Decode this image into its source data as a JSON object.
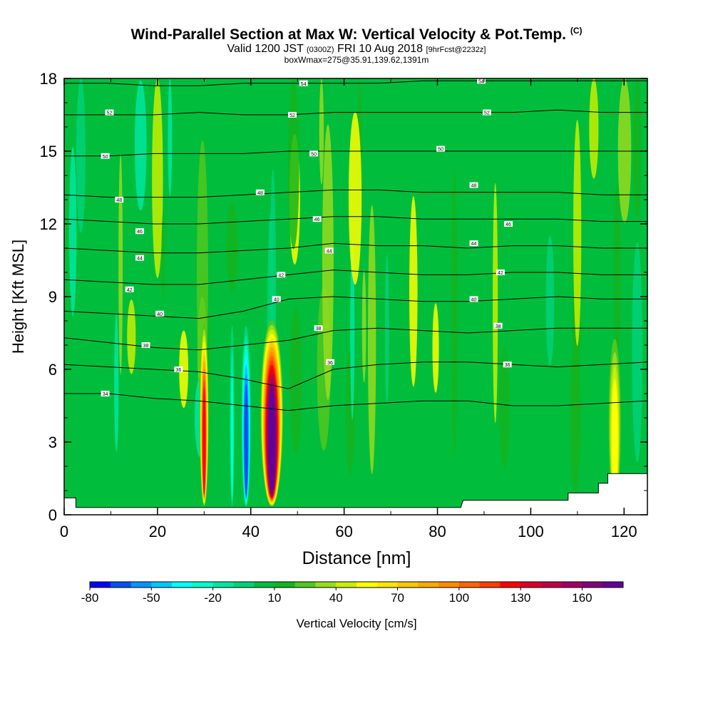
{
  "chart_data": {
    "type": "heatmap",
    "title": "Wind-Parallel Section at Max W: Vertical Velocity & Pot.Temp.",
    "title_suffix": "(C)",
    "subtitle_main_a": "Valid 1200 JST",
    "subtitle_zulu": "(0300Z)",
    "subtitle_main_b": "FRI 10 Aug 2018",
    "subtitle_fcst": "[9hrFcst@2232z]",
    "subtitle2": "boxWmax=275@35.91,139.62,1391m",
    "xlabel": "Distance [nm]",
    "ylabel": "Height [Kft MSL]",
    "xlim": [
      0,
      125
    ],
    "ylim": [
      0,
      18
    ],
    "x_ticks": [
      "0",
      "20",
      "40",
      "60",
      "80",
      "100",
      "120"
    ],
    "y_ticks": [
      "0",
      "3",
      "6",
      "9",
      "12",
      "15",
      "18"
    ],
    "colorbar": {
      "label": "Vertical Velocity [cm/s]",
      "min": -80,
      "max": 180,
      "step": 10,
      "tick_labels": [
        "-80",
        "-50",
        "-20",
        "10",
        "40",
        "70",
        "100",
        "130",
        "160"
      ],
      "colors": [
        "#0000ff",
        "#0050f0",
        "#0096ff",
        "#00c8ff",
        "#00ffff",
        "#00ffc8",
        "#00e6a0",
        "#00d278",
        "#00be3c",
        "#14b41e",
        "#50c81e",
        "#96dc1e",
        "#c8f000",
        "#ffff00",
        "#ffe600",
        "#ffc800",
        "#ffaa00",
        "#ff8c00",
        "#ff6400",
        "#ff3c00",
        "#ff0000",
        "#dc0028",
        "#be0046",
        "#a00064",
        "#820078",
        "#640096"
      ]
    },
    "cells": [
      {
        "x0": 29,
        "x1": 31,
        "peak": 120
      },
      {
        "x0": 35.5,
        "x1": 36.5,
        "peak": -30
      },
      {
        "x0": 38,
        "x1": 40,
        "peak": -75
      },
      {
        "x0": 42,
        "x1": 47,
        "peak": 175
      },
      {
        "x0": 116.5,
        "x1": 119.5,
        "peak": 55
      }
    ],
    "isentropes": [
      {
        "theta": 34,
        "y": [
          5.0,
          5.0,
          4.8,
          4.7,
          4.5,
          4.3,
          4.5,
          4.6,
          4.7,
          4.7,
          4.5,
          4.5,
          4.6,
          4.7
        ]
      },
      {
        "theta": 36,
        "y": [
          6.2,
          6.1,
          6.0,
          5.9,
          5.6,
          5.2,
          6.0,
          6.2,
          6.3,
          6.3,
          6.2,
          6.1,
          6.2,
          6.3
        ]
      },
      {
        "theta": 38,
        "y": [
          7.3,
          7.1,
          6.9,
          6.8,
          7.0,
          7.2,
          7.6,
          7.7,
          7.6,
          7.5,
          7.6,
          7.7,
          7.7,
          7.7
        ]
      },
      {
        "theta": 40,
        "y": [
          8.4,
          8.3,
          8.2,
          8.1,
          8.4,
          8.9,
          9.0,
          8.9,
          8.8,
          8.8,
          8.9,
          9.0,
          8.9,
          8.9
        ]
      },
      {
        "theta": 42,
        "y": [
          9.7,
          9.6,
          9.5,
          9.5,
          9.7,
          9.9,
          10.1,
          10.0,
          9.9,
          9.9,
          10.0,
          10.0,
          9.9,
          9.9
        ]
      },
      {
        "theta": 44,
        "y": [
          11.0,
          10.9,
          10.8,
          10.8,
          10.9,
          11.0,
          11.2,
          11.1,
          11.1,
          11.0,
          11.1,
          11.1,
          11.0,
          11.0
        ]
      },
      {
        "theta": 46,
        "y": [
          12.2,
          12.1,
          12.0,
          12.0,
          12.1,
          12.2,
          12.3,
          12.3,
          12.2,
          12.2,
          12.2,
          12.2,
          12.1,
          12.1
        ]
      },
      {
        "theta": 48,
        "y": [
          13.2,
          13.1,
          13.1,
          13.1,
          13.2,
          13.3,
          13.4,
          13.4,
          13.3,
          13.3,
          13.3,
          13.3,
          13.2,
          13.2
        ]
      },
      {
        "theta": 50,
        "y": [
          14.8,
          14.8,
          14.9,
          14.9,
          14.9,
          15.0,
          15.0,
          15.0,
          15.0,
          15.0,
          15.0,
          15.0,
          15.0,
          15.0
        ]
      },
      {
        "theta": 52,
        "y": [
          16.5,
          16.5,
          16.5,
          16.6,
          16.5,
          16.5,
          16.6,
          16.6,
          16.6,
          16.6,
          16.6,
          16.7,
          16.6,
          16.6
        ]
      },
      {
        "theta": 54,
        "y": [
          17.8,
          17.8,
          17.7,
          17.7,
          17.8,
          17.8,
          17.8,
          17.8,
          17.9,
          17.9,
          17.9,
          17.9,
          17.9,
          17.9
        ]
      }
    ],
    "theta_labels": [
      {
        "text": "34",
        "x": 8.8,
        "y": 5.0
      },
      {
        "text": "36",
        "x": 24.5,
        "y": 6.0
      },
      {
        "text": "36",
        "x": 57,
        "y": 6.3
      },
      {
        "text": "36",
        "x": 95,
        "y": 6.2
      },
      {
        "text": "38",
        "x": 17.5,
        "y": 7.0
      },
      {
        "text": "38",
        "x": 54.5,
        "y": 7.7
      },
      {
        "text": "38",
        "x": 93,
        "y": 7.8
      },
      {
        "text": "40",
        "x": 20.5,
        "y": 8.3
      },
      {
        "text": "40",
        "x": 45.5,
        "y": 8.9
      },
      {
        "text": "40",
        "x": 87.8,
        "y": 8.9
      },
      {
        "text": "42",
        "x": 14,
        "y": 9.3
      },
      {
        "text": "42",
        "x": 46.5,
        "y": 9.9
      },
      {
        "text": "42",
        "x": 93.5,
        "y": 10.0
      },
      {
        "text": "44",
        "x": 16.2,
        "y": 10.6
      },
      {
        "text": "44",
        "x": 56.8,
        "y": 10.9
      },
      {
        "text": "44",
        "x": 87.8,
        "y": 11.2
      },
      {
        "text": "46",
        "x": 16.2,
        "y": 11.7
      },
      {
        "text": "46",
        "x": 54.2,
        "y": 12.2
      },
      {
        "text": "46",
        "x": 95.2,
        "y": 12.0
      },
      {
        "text": "48",
        "x": 11.8,
        "y": 13.0
      },
      {
        "text": "48",
        "x": 42,
        "y": 13.3
      },
      {
        "text": "48",
        "x": 87.8,
        "y": 13.6
      },
      {
        "text": "50",
        "x": 8.8,
        "y": 14.8
      },
      {
        "text": "50",
        "x": 53.5,
        "y": 14.9
      },
      {
        "text": "50",
        "x": 80.7,
        "y": 15.1
      },
      {
        "text": "52",
        "x": 9.7,
        "y": 16.6
      },
      {
        "text": "52",
        "x": 48.9,
        "y": 16.5
      },
      {
        "text": "52",
        "x": 90.6,
        "y": 16.6
      },
      {
        "text": "54",
        "x": 51.3,
        "y": 17.8
      },
      {
        "text": "54",
        "x": 89.4,
        "y": 17.9
      }
    ],
    "theta_label_34": "34",
    "terrain": [
      [
        0,
        0.7
      ],
      [
        2.5,
        0.7
      ],
      [
        2.5,
        0.3
      ],
      [
        85,
        0.3
      ],
      [
        85.5,
        0.6
      ],
      [
        108,
        0.6
      ],
      [
        108,
        0.9
      ],
      [
        114.5,
        0.9
      ],
      [
        114.5,
        1.3
      ],
      [
        116.5,
        1.3
      ],
      [
        116.5,
        1.7
      ],
      [
        125,
        1.7
      ]
    ]
  }
}
